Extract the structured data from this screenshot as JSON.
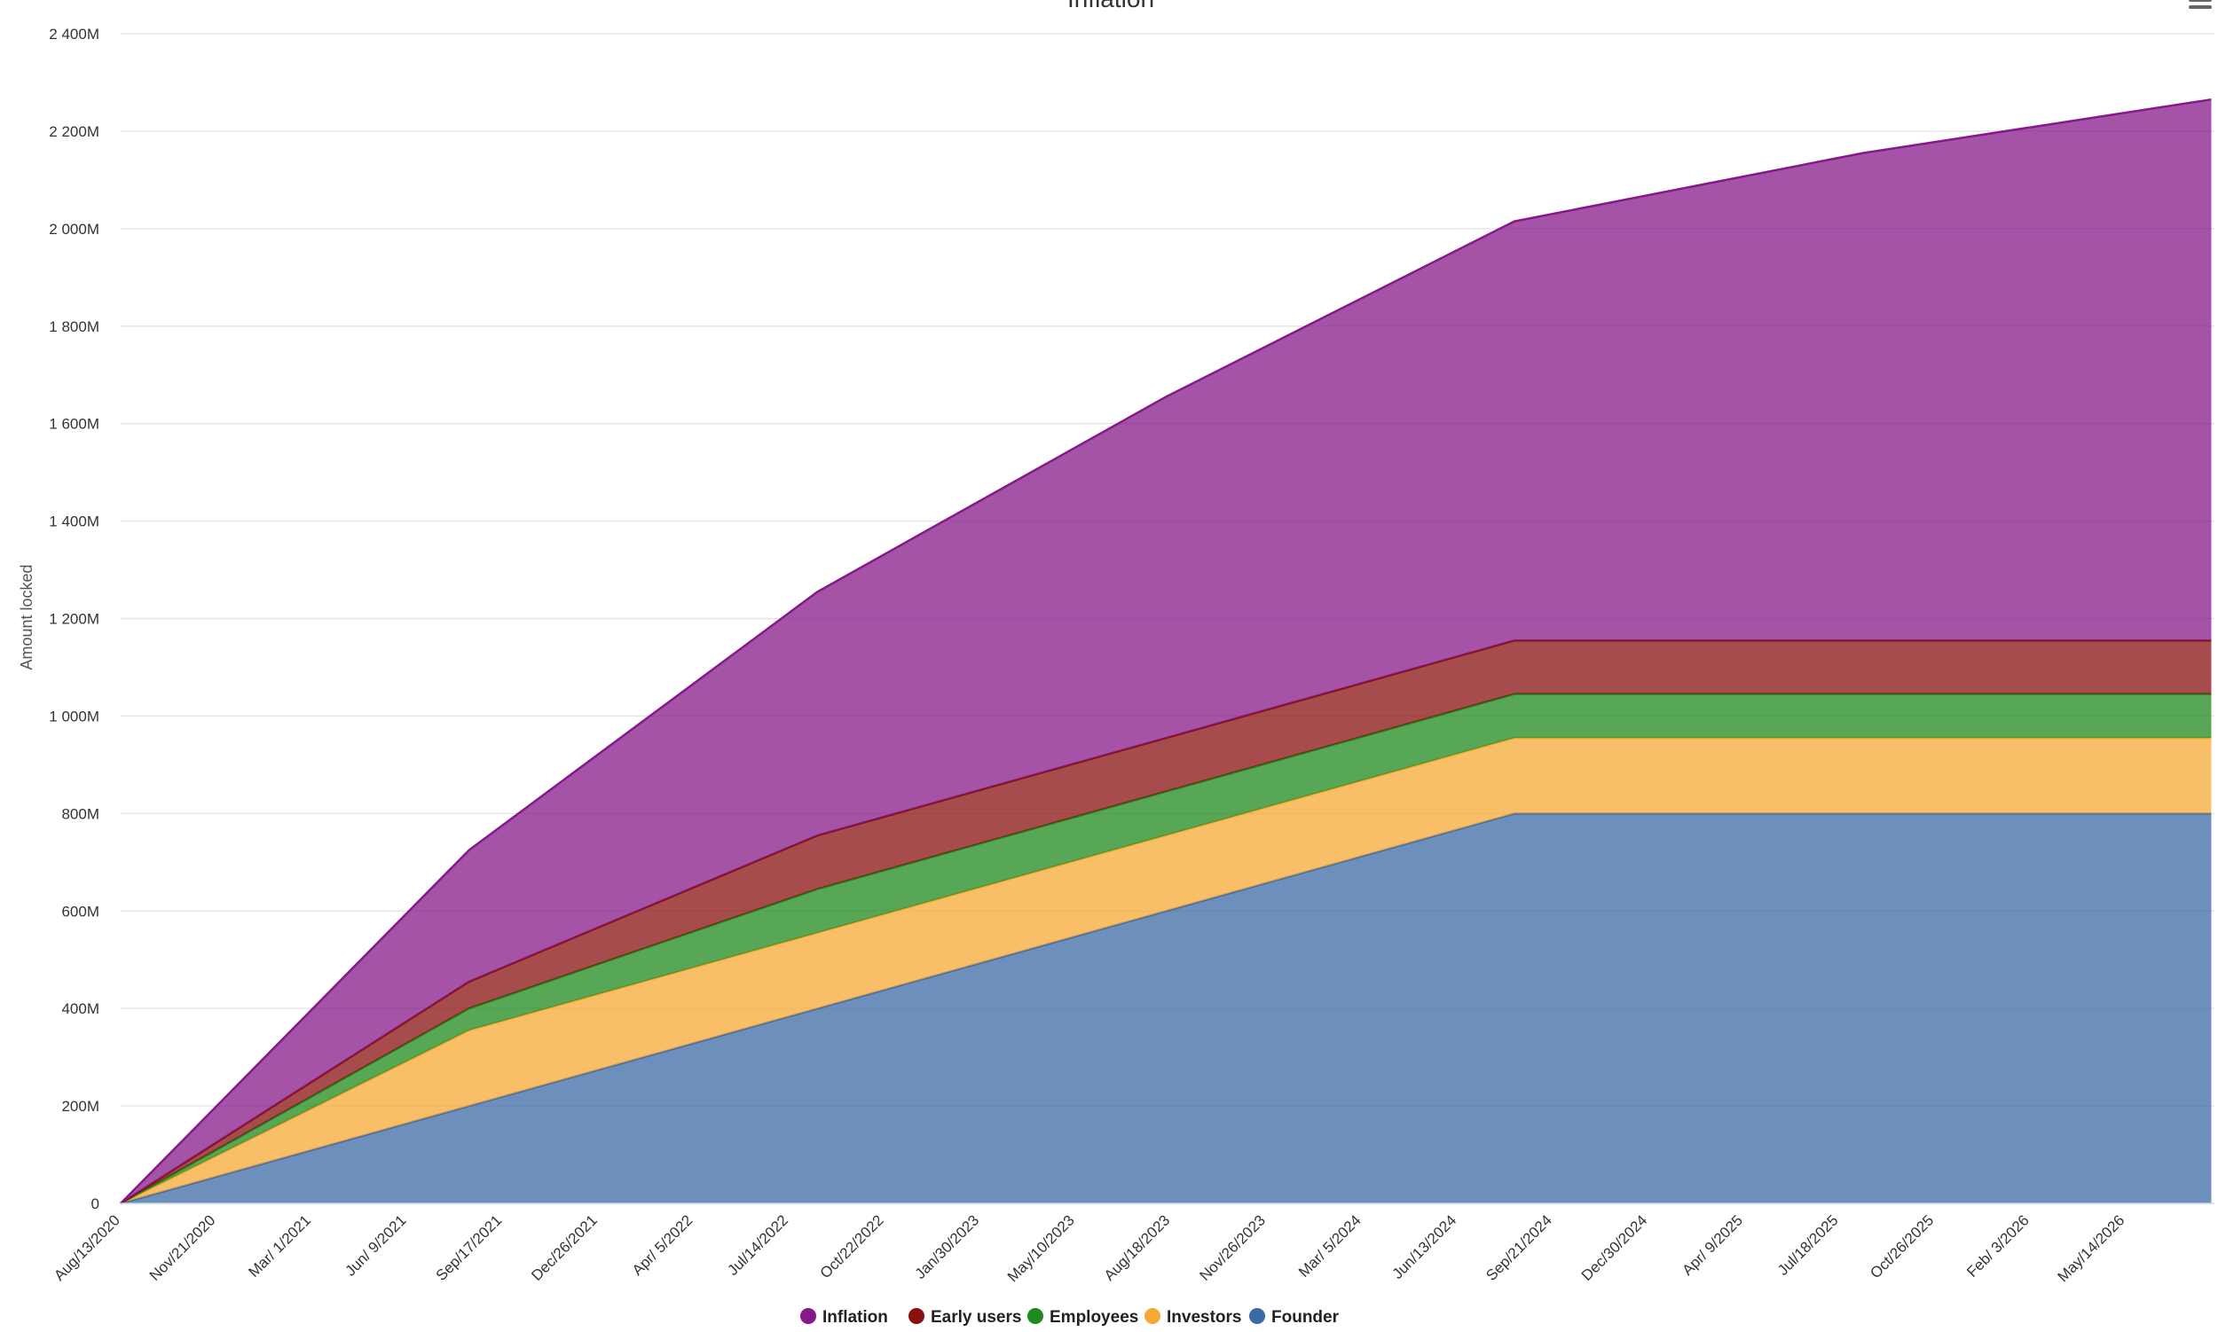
{
  "menu_icon": "hamburger-menu-icon",
  "chart_data": {
    "type": "area",
    "stacked": true,
    "title": "Inflation",
    "ylabel": "Amount locked",
    "xlabel": "",
    "ylim": [
      0,
      2400
    ],
    "y_ticks": [
      0,
      200,
      400,
      600,
      800,
      1000,
      1200,
      1400,
      1600,
      1800,
      2000,
      2200,
      2400
    ],
    "y_tick_labels": [
      "0",
      "200M",
      "400M",
      "600M",
      "800M",
      "1 000M",
      "1 200M",
      "1 400M",
      "1 600M",
      "1 800M",
      "2 000M",
      "2 200M",
      "2 400M"
    ],
    "x_tick_labels": [
      "Aug/13/2020",
      "Nov/21/2020",
      "Mar/ 1/2021",
      "Jun/ 9/2021",
      "Sep/17/2021",
      "Dec/26/2021",
      "Apr/ 5/2022",
      "Jul/14/2022",
      "Oct/22/2022",
      "Jan/30/2023",
      "May/10/2023",
      "Aug/18/2023",
      "Nov/26/2023",
      "Mar/ 5/2024",
      "Jun/13/2024",
      "Sep/21/2024",
      "Dec/30/2024",
      "Apr/ 9/2025",
      "Jul/18/2025",
      "Oct/26/2025",
      "Feb/ 3/2026",
      "May/14/2026"
    ],
    "x": [
      "Aug/13/2020",
      "Aug/13/2021",
      "Aug/13/2022",
      "Aug/13/2023",
      "Aug/13/2024",
      "Aug/13/2025",
      "Aug/13/2026"
    ],
    "legend_position": "bottom-center",
    "grid": true,
    "series": [
      {
        "name": "Founder",
        "color": "#3c6aa5",
        "values": [
          0,
          200,
          400,
          600,
          800,
          800,
          800
        ]
      },
      {
        "name": "Investors",
        "color": "#f7a935",
        "values": [
          0,
          155,
          155,
          155,
          155,
          155,
          155
        ]
      },
      {
        "name": "Employees",
        "color": "#1f8a1f",
        "values": [
          0,
          45,
          90,
          90,
          90,
          90,
          90
        ]
      },
      {
        "name": "Early users",
        "color": "#8a1010",
        "values": [
          0,
          55,
          110,
          110,
          110,
          110,
          110
        ]
      },
      {
        "name": "Inflation",
        "color": "#86198a",
        "values": [
          0,
          270,
          500,
          700,
          860,
          1000,
          1110
        ]
      }
    ],
    "legend_order": [
      "Inflation",
      "Early users",
      "Employees",
      "Investors",
      "Founder"
    ]
  }
}
